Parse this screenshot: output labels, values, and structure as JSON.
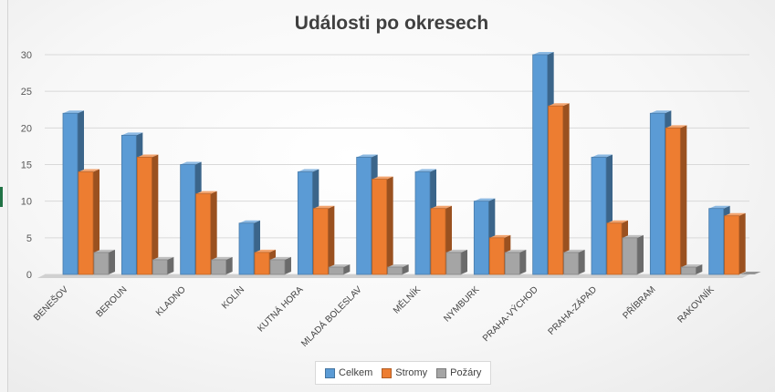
{
  "chart_data": {
    "type": "bar",
    "title": "Události po okresech",
    "categories": [
      "BENEŠOV",
      "BEROUN",
      "KLADNO",
      "KOLÍN",
      "KUTNÁ HORA",
      "MLADÁ BOLESLAV",
      "MĚLNÍK",
      "NYMBURK",
      "PRAHA-VÝCHOD",
      "PRAHA-ZÁPAD",
      "PŘÍBRAM",
      "RAKOVNÍK"
    ],
    "series": [
      {
        "name": "Celkem",
        "values": [
          22,
          19,
          15,
          7,
          14,
          16,
          14,
          10,
          30,
          16,
          22,
          9
        ],
        "color": "#5b9bd5"
      },
      {
        "name": "Stromy",
        "values": [
          14,
          16,
          11,
          3,
          9,
          13,
          9,
          5,
          23,
          7,
          20,
          8
        ],
        "color": "#ed7d31"
      },
      {
        "name": "Požáry",
        "values": [
          3,
          2,
          2,
          2,
          1,
          1,
          3,
          3,
          3,
          5,
          1,
          0
        ],
        "color": "#a5a5a5"
      }
    ],
    "yticks": [
      "0",
      "5",
      "10",
      "15",
      "20",
      "25",
      "30"
    ],
    "ylim": [
      0,
      30
    ],
    "grid": true,
    "legend_position": "bottom"
  }
}
